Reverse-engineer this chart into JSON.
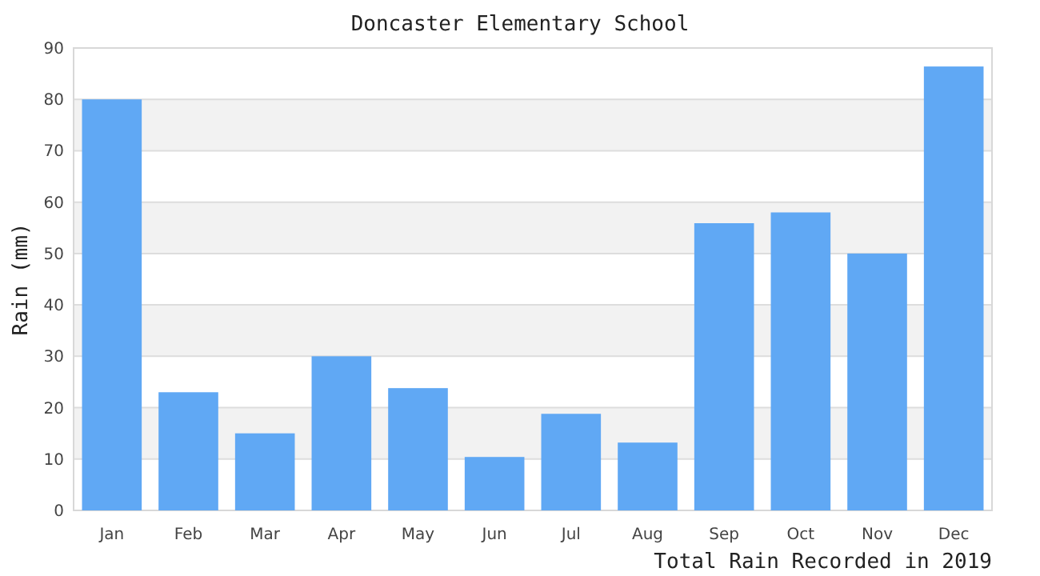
{
  "chart_data": {
    "type": "bar",
    "title": "Doncaster Elementary School",
    "xlabel": "Total Rain Recorded in 2019",
    "ylabel": "Rain (mm)",
    "categories": [
      "Jan",
      "Feb",
      "Mar",
      "Apr",
      "May",
      "Jun",
      "Jul",
      "Aug",
      "Sep",
      "Oct",
      "Nov",
      "Dec"
    ],
    "values": [
      80,
      23,
      15,
      30,
      23.8,
      10.4,
      18.8,
      13.2,
      55.9,
      58,
      50,
      86.4
    ],
    "color": "#60a8f4",
    "ylim": [
      0,
      90
    ],
    "yticks": [
      0,
      10,
      20,
      30,
      40,
      50,
      60,
      70,
      80,
      90
    ],
    "grid": "y"
  }
}
